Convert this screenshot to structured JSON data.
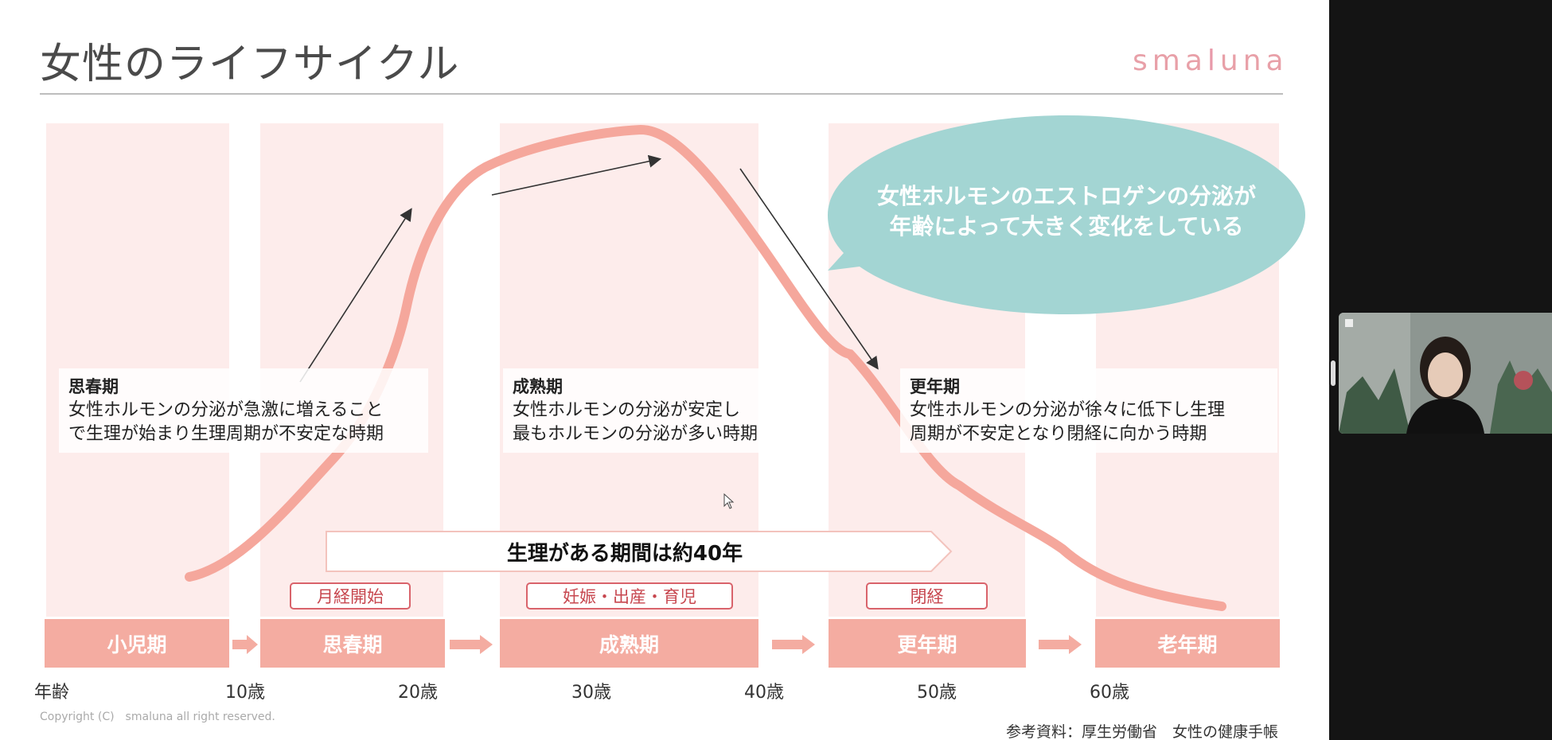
{
  "title": "女性のライフサイクル",
  "logo": {
    "pre": "sma",
    "mid": "l",
    "post": "una"
  },
  "bubble": {
    "line1": "女性ホルモンのエストロゲンの分泌が",
    "line2": "年齢によって大きく変化をしている",
    "color": "#a3d5d3"
  },
  "stages": [
    {
      "label": "小児期"
    },
    {
      "label": "思春期"
    },
    {
      "label": "成熟期"
    },
    {
      "label": "更年期"
    },
    {
      "label": "老年期"
    }
  ],
  "info_boxes": {
    "puberty": {
      "heading": "思春期",
      "line1": "女性ホルモンの分泌が急激に増えること",
      "line2": "で生理が始まり生理周期が不安定な時期"
    },
    "maturity": {
      "heading": "成熟期",
      "line1": "女性ホルモンの分泌が安定し",
      "line2": "最もホルモンの分泌が多い時期"
    },
    "menopause": {
      "heading": "更年期",
      "line1": "女性ホルモンの分泌が徐々に低下し生理",
      "line2": "周期が不安定となり閉経に向かう時期"
    }
  },
  "period_banner": "生理がある期間は約40年",
  "events": [
    "月経開始",
    "妊娠・出産・育児",
    "閉経"
  ],
  "ages": [
    "年齢",
    "10歳",
    "20歳",
    "30歳",
    "40歳",
    "50歳",
    "60歳"
  ],
  "copyright": "Copyright (C)　smaluna all right reserved.",
  "reference": "参考資料：厚生労働省　女性の健康手帳",
  "colors": {
    "stage_bar": "#f4aca1",
    "stage_bg": "#fdeceb",
    "curve": "#f5a79c",
    "tag_border": "#d9636b"
  }
}
